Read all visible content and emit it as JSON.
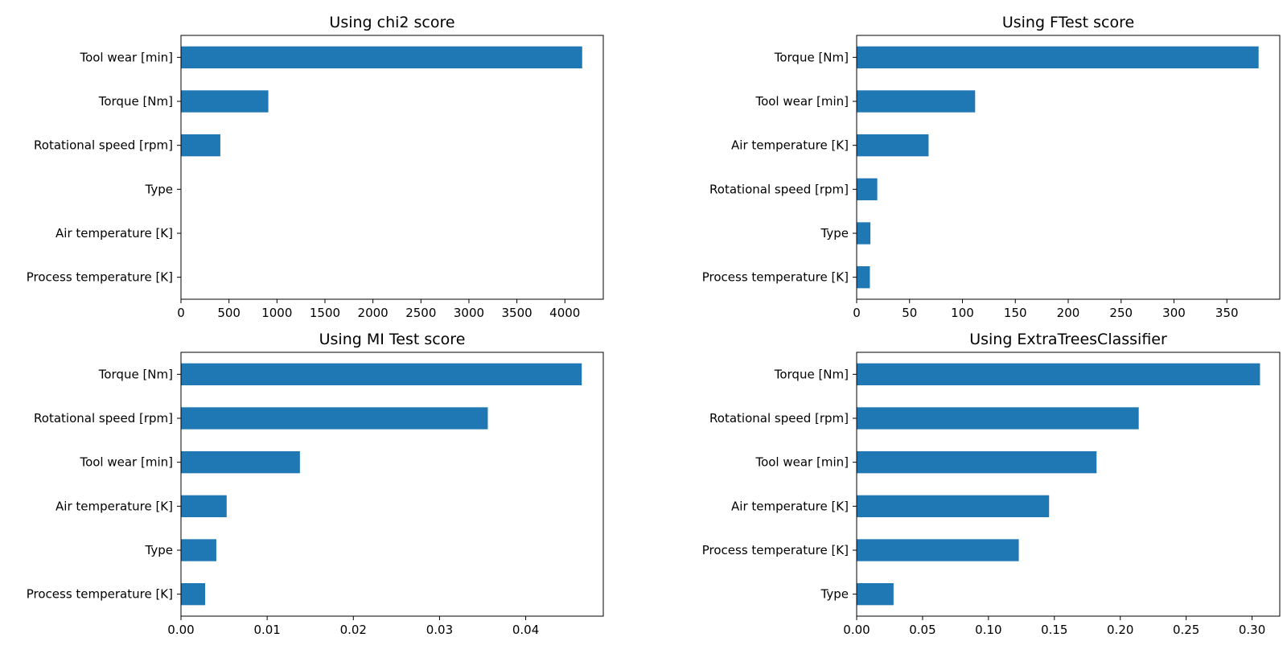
{
  "chart_data": [
    {
      "type": "bar",
      "orientation": "horizontal",
      "title": "Using chi2 score",
      "categories": [
        "Tool wear [min]",
        "Torque [Nm]",
        "Rotational speed [rpm]",
        "Type",
        "Air temperature [K]",
        "Process temperature [K]"
      ],
      "values": [
        4180,
        910,
        410,
        0,
        0,
        0
      ],
      "xlim": [
        0,
        4400
      ],
      "xticks": [
        0,
        500,
        1000,
        1500,
        2000,
        2500,
        3000,
        3500,
        4000
      ],
      "tick_labels": [
        "0",
        "500",
        "1000",
        "1500",
        "2000",
        "2500",
        "3000",
        "3500",
        "4000"
      ],
      "color": "#1f77b4",
      "grid": false
    },
    {
      "type": "bar",
      "orientation": "horizontal",
      "title": "Using FTest score",
      "categories": [
        "Torque [Nm]",
        "Tool wear [min]",
        "Air temperature [K]",
        "Rotational speed [rpm]",
        "Type",
        "Process temperature [K]"
      ],
      "values": [
        380,
        112,
        68,
        19.5,
        13,
        12.5
      ],
      "xlim": [
        0,
        400
      ],
      "xticks": [
        0,
        50,
        100,
        150,
        200,
        250,
        300,
        350
      ],
      "tick_labels": [
        "0",
        "50",
        "100",
        "150",
        "200",
        "250",
        "300",
        "350"
      ],
      "color": "#1f77b4",
      "grid": false
    },
    {
      "type": "bar",
      "orientation": "horizontal",
      "title": "Using MI Test score",
      "categories": [
        "Torque [Nm]",
        "Rotational speed [rpm]",
        "Tool wear [min]",
        "Air temperature [K]",
        "Type",
        "Process temperature [K]"
      ],
      "values": [
        0.0465,
        0.0356,
        0.0138,
        0.0053,
        0.0041,
        0.0028
      ],
      "xlim": [
        0,
        0.049
      ],
      "xticks": [
        0,
        0.01,
        0.02,
        0.03,
        0.04
      ],
      "tick_labels": [
        "0.00",
        "0.01",
        "0.02",
        "0.03",
        "0.04"
      ],
      "color": "#1f77b4",
      "grid": false
    },
    {
      "type": "bar",
      "orientation": "horizontal",
      "title": "Using ExtraTreesClassifier",
      "categories": [
        "Torque [Nm]",
        "Rotational speed [rpm]",
        "Tool wear [min]",
        "Air temperature [K]",
        "Process temperature [K]",
        "Type"
      ],
      "values": [
        0.306,
        0.214,
        0.182,
        0.146,
        0.123,
        0.028
      ],
      "xlim": [
        0,
        0.321
      ],
      "xticks": [
        0,
        0.05,
        0.1,
        0.15,
        0.2,
        0.25,
        0.3
      ],
      "tick_labels": [
        "0.00",
        "0.05",
        "0.10",
        "0.15",
        "0.20",
        "0.25",
        "0.30"
      ],
      "color": "#1f77b4",
      "grid": false
    }
  ]
}
